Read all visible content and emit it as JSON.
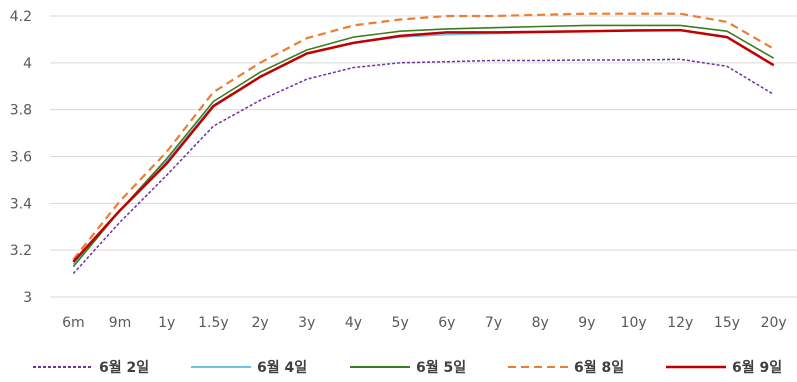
{
  "chart_data": {
    "type": "line",
    "title": "",
    "xlabel": "",
    "ylabel": "",
    "categories": [
      "6m",
      "9m",
      "1y",
      "1.5y",
      "2y",
      "3y",
      "4y",
      "5y",
      "6y",
      "7y",
      "8y",
      "9y",
      "10y",
      "12y",
      "15y",
      "20y"
    ],
    "ylim": [
      3,
      4.2
    ],
    "yticks": [
      3,
      3.2,
      3.4,
      3.6,
      3.8,
      4,
      4.2
    ],
    "ytick_labels": [
      "3",
      "3.2",
      "3.4",
      "3.6",
      "3.8",
      "4",
      "4.2"
    ],
    "grid": "horizontal",
    "legend_position": "bottom",
    "series": [
      {
        "name": "6월 2일",
        "color": "#7030a0",
        "dash": "dotted",
        "values": [
          3.1,
          3.32,
          3.52,
          3.73,
          3.84,
          3.93,
          3.98,
          4.0,
          4.005,
          4.01,
          4.01,
          4.012,
          4.012,
          4.015,
          3.985,
          3.865
        ]
      },
      {
        "name": "6월 4일",
        "color": "#6fc4e8",
        "dash": "solid",
        "values": [
          3.14,
          3.37,
          3.58,
          3.82,
          3.94,
          4.04,
          4.085,
          4.11,
          4.12,
          4.125,
          4.13,
          4.135,
          4.14,
          4.14,
          4.11,
          3.99
        ]
      },
      {
        "name": "6월 5일",
        "color": "#3a7d23",
        "dash": "solid",
        "values": [
          3.13,
          3.37,
          3.59,
          3.835,
          3.96,
          4.055,
          4.11,
          4.135,
          4.145,
          4.15,
          4.155,
          4.16,
          4.16,
          4.16,
          4.135,
          4.02
        ]
      },
      {
        "name": "6월 8일",
        "color": "#ed7d31",
        "dash": "dashed",
        "values": [
          3.16,
          3.41,
          3.62,
          3.875,
          4.0,
          4.105,
          4.16,
          4.185,
          4.2,
          4.2,
          4.205,
          4.21,
          4.21,
          4.21,
          4.175,
          4.06
        ]
      },
      {
        "name": "6월 9일",
        "color": "#c00000",
        "dash": "solid",
        "values": [
          3.15,
          3.37,
          3.57,
          3.815,
          3.94,
          4.04,
          4.085,
          4.115,
          4.13,
          4.13,
          4.132,
          4.135,
          4.138,
          4.14,
          4.11,
          3.99
        ]
      }
    ]
  }
}
